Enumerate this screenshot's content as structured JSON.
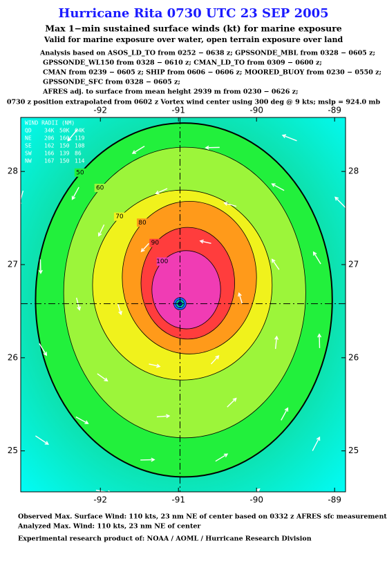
{
  "header": {
    "title": "Hurricane Rita 0730 UTC 23 SEP 2005",
    "subtitle": "Max 1−min sustained surface winds (kt) for marine exposure",
    "valid": "Valid for marine exposure over water, open terrain exposure over land",
    "analysis": [
      "Analysis based on  ASOS_LD_TO from 0252 − 0638 z;  GPSSONDE_MBL from 0328 − 0605 z;",
      "GPSSONDE_WL150 from 0328 − 0610 z;  CMAN_LD_TO from 0309 − 0600 z;",
      "CMAN from 0239 − 0605 z;  SHIP from 0606 − 0606 z;  MOORED_BUOY from 0230 − 0550 z;",
      "GPSSONDE_SFC from 0328 − 0605 z;",
      "AFRES adj. to surface from mean height 2939 m from 0230 − 0626 z;"
    ],
    "position": "0730 z position extrapolated from 0602 z Vortex wind center using 300 deg @ 9 kts; mslp = 924.0 mb"
  },
  "map": {
    "xlim": [
      -93.02,
      -88.86
    ],
    "ylim": [
      24.56,
      28.58
    ],
    "xticks": [
      -92,
      -91,
      -90,
      -89
    ],
    "yticks": [
      25,
      26,
      27,
      28
    ],
    "center": [
      -90.98,
      26.58
    ],
    "contours": [
      {
        "level": 50,
        "color": "#22f03c"
      },
      {
        "level": 60,
        "color": "#9cf53a"
      },
      {
        "level": 70,
        "color": "#f0f21c"
      },
      {
        "level": 80,
        "color": "#ff9a1a"
      },
      {
        "level": 90,
        "color": "#ff3d3d"
      },
      {
        "level": 100,
        "color": "#f03cb4"
      }
    ],
    "wind_radii": {
      "title": "WIND RADII (NM)",
      "rows": [
        [
          "QD",
          "34K",
          "50K",
          "64K"
        ],
        [
          "NE",
          "206",
          "160",
          "119"
        ],
        [
          "SE",
          "162",
          "150",
          "108"
        ],
        [
          "SW",
          "166",
          "139",
          "86"
        ],
        [
          "NW",
          "167",
          "150",
          "114"
        ]
      ]
    }
  },
  "footer": [
    "Observed Max. Surface Wind: 110 kts, 23 nm NE of center based on 0332 z AFRES sfc measurement",
    "Analyzed Max. Wind: 110 kts, 23 nm NE of center",
    "Experimental research product of:  NOAA / AOML / Hurricane Research Division"
  ]
}
